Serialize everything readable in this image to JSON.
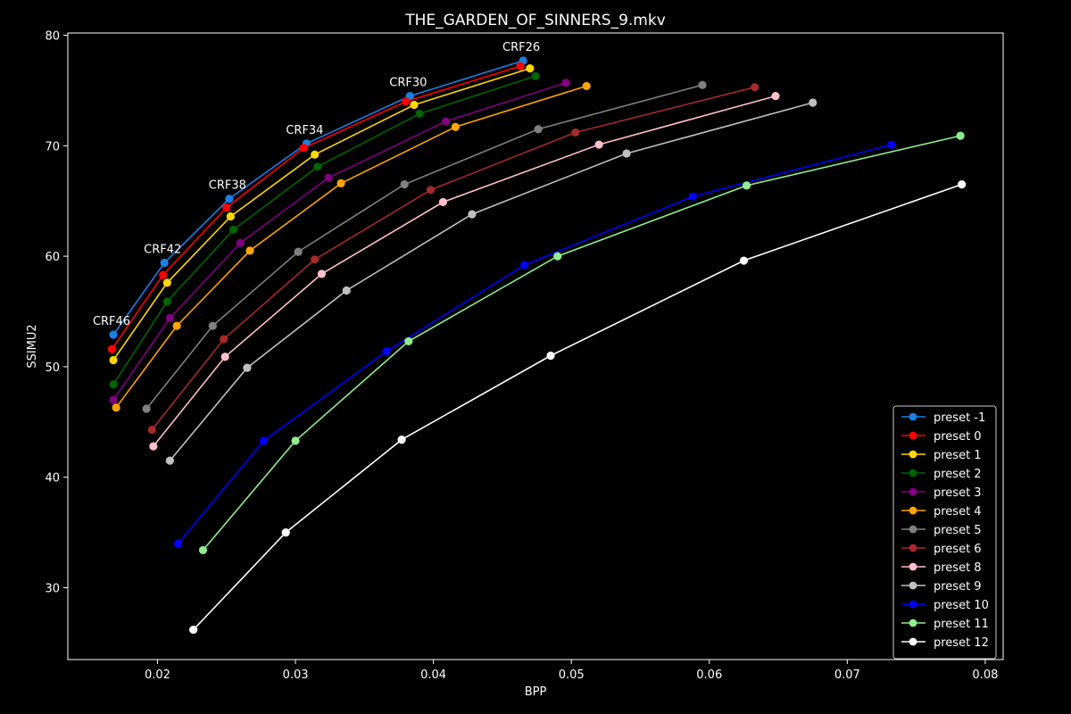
{
  "chart_data": {
    "type": "line",
    "title": "THE_GARDEN_OF_SINNERS_9.mkv",
    "xlabel": "BPP",
    "ylabel": "SSIMU2",
    "xlim": [
      0.0135,
      0.0813
    ],
    "ylim": [
      23.5,
      80.2
    ],
    "xticks": [
      "0.02",
      "0.03",
      "0.04",
      "0.05",
      "0.06",
      "0.07",
      "0.08"
    ],
    "yticks": [
      "30",
      "40",
      "50",
      "60",
      "70",
      "80"
    ],
    "grid": false,
    "legend_position": "lower-right",
    "background": "#000000",
    "annotations": [
      {
        "text": "CRF26",
        "x": 0.0465,
        "y": 77.7
      },
      {
        "text": "CRF30",
        "x": 0.0383,
        "y": 74.5
      },
      {
        "text": "CRF34",
        "x": 0.0308,
        "y": 70.2
      },
      {
        "text": "CRF38",
        "x": 0.0252,
        "y": 65.2
      },
      {
        "text": "CRF42",
        "x": 0.0205,
        "y": 59.4
      },
      {
        "text": "CRF46",
        "x": 0.0168,
        "y": 52.9
      }
    ],
    "series": [
      {
        "name": "preset -1",
        "color": "#1a80e6",
        "x": [
          0.0168,
          0.0205,
          0.0252,
          0.0308,
          0.0383,
          0.0465
        ],
        "y": [
          52.9,
          59.4,
          65.2,
          70.2,
          74.5,
          77.7
        ]
      },
      {
        "name": "preset 0",
        "color": "#ff0000",
        "x": [
          0.0167,
          0.0204,
          0.025,
          0.0306,
          0.038,
          0.0463
        ],
        "y": [
          51.6,
          58.3,
          64.4,
          69.8,
          74.0,
          77.2
        ]
      },
      {
        "name": "preset 1",
        "color": "#ffd700",
        "x": [
          0.0168,
          0.0207,
          0.0253,
          0.0314,
          0.0386,
          0.047
        ],
        "y": [
          50.6,
          57.6,
          63.6,
          69.2,
          73.7,
          77.0
        ]
      },
      {
        "name": "preset 2",
        "color": "#006400",
        "x": [
          0.0168,
          0.0207,
          0.0255,
          0.0316,
          0.039,
          0.0474
        ],
        "y": [
          48.4,
          55.9,
          62.4,
          68.1,
          72.9,
          76.3
        ]
      },
      {
        "name": "preset 3",
        "color": "#800080",
        "x": [
          0.0168,
          0.0209,
          0.026,
          0.0324,
          0.0409,
          0.0496
        ],
        "y": [
          47.0,
          54.4,
          61.2,
          67.1,
          72.2,
          75.7
        ]
      },
      {
        "name": "preset 4",
        "color": "#ffa500",
        "x": [
          0.017,
          0.0214,
          0.0267,
          0.0333,
          0.0416,
          0.0511
        ],
        "y": [
          46.3,
          53.7,
          60.5,
          66.6,
          71.7,
          75.4
        ]
      },
      {
        "name": "preset 5",
        "color": "#808080",
        "x": [
          0.0192,
          0.024,
          0.0302,
          0.0379,
          0.0476,
          0.0595
        ],
        "y": [
          46.2,
          53.7,
          60.4,
          66.5,
          71.5,
          75.5
        ]
      },
      {
        "name": "preset 6",
        "color": "#a52a2a",
        "x": [
          0.0196,
          0.0248,
          0.0314,
          0.0398,
          0.0503,
          0.0633
        ],
        "y": [
          44.3,
          52.5,
          59.7,
          66.0,
          71.2,
          75.3
        ]
      },
      {
        "name": "preset 8",
        "color": "#ffc0cb",
        "x": [
          0.0197,
          0.0249,
          0.0319,
          0.0407,
          0.052,
          0.0648
        ],
        "y": [
          42.8,
          50.9,
          58.4,
          64.9,
          70.1,
          74.5
        ]
      },
      {
        "name": "preset 9",
        "color": "#c0c0c0",
        "x": [
          0.0209,
          0.0265,
          0.0337,
          0.0428,
          0.054,
          0.0675
        ],
        "y": [
          41.5,
          49.9,
          56.9,
          63.8,
          69.3,
          73.9
        ]
      },
      {
        "name": "preset 10",
        "color": "#0000ff",
        "x": [
          0.0215,
          0.0277,
          0.0366,
          0.0466,
          0.0588,
          0.0732
        ],
        "y": [
          34.0,
          43.3,
          51.4,
          59.2,
          65.4,
          70.1
        ]
      },
      {
        "name": "preset 11",
        "color": "#90ee90",
        "x": [
          0.0233,
          0.03,
          0.0382,
          0.049,
          0.0627,
          0.0782
        ],
        "y": [
          33.4,
          43.3,
          52.3,
          60.0,
          66.4,
          70.9
        ]
      },
      {
        "name": "preset 12",
        "color": "#ffffff",
        "x": [
          0.0226,
          0.0293,
          0.0377,
          0.0485,
          0.0625,
          0.0783
        ],
        "y": [
          26.2,
          35.0,
          43.4,
          51.0,
          59.6,
          66.5
        ]
      }
    ]
  }
}
